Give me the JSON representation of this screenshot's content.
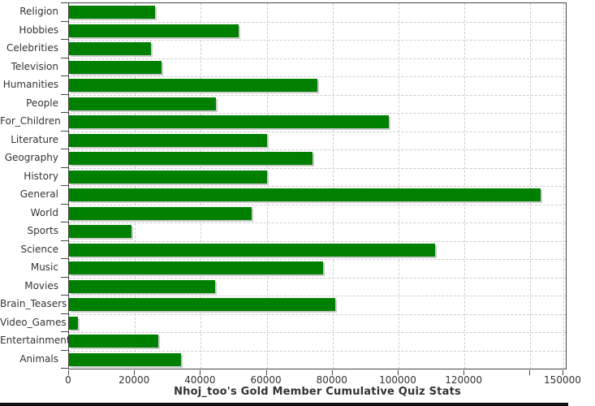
{
  "chart_data": {
    "type": "bar",
    "orientation": "horizontal",
    "title": "Nhoj_too's Gold Member Cumulative Quiz Stats",
    "categories": [
      "Religion",
      "Hobbies",
      "Celebrities",
      "Television",
      "Humanities",
      "People",
      "For_Children",
      "Literature",
      "Geography",
      "History",
      "General",
      "World",
      "Sports",
      "Science",
      "Music",
      "Movies",
      "Brain_Teasers",
      "Video_Games",
      "Entertainment",
      "Animals"
    ],
    "values": [
      26000,
      51500,
      25000,
      28000,
      75300,
      44600,
      97000,
      60100,
      74000,
      60000,
      143000,
      55500,
      19000,
      111200,
      77200,
      44300,
      80700,
      2600,
      27200,
      33900
    ],
    "xlim": [
      0,
      150750
    ],
    "x_ticks": [
      {
        "value": 0,
        "label": "0"
      },
      {
        "value": 20000,
        "label": "20000"
      },
      {
        "value": 40000,
        "label": "40000"
      },
      {
        "value": 60000,
        "label": "60000"
      },
      {
        "value": 80000,
        "label": "80000"
      },
      {
        "value": 100000,
        "label": "100000"
      },
      {
        "value": 120000,
        "label": "120000"
      },
      {
        "value": 140000,
        "label": ""
      },
      {
        "value": 150000,
        "label": "150000"
      }
    ],
    "grid": "dashed",
    "legend": "none",
    "bar_color": "#008000",
    "shadow_color": "#cccccc",
    "grid_color": "#cccccc",
    "axis_color": "#444444",
    "text_color": "#333333",
    "background": "#ffffff"
  },
  "decor": {
    "bottom_band_color": "#111111"
  }
}
